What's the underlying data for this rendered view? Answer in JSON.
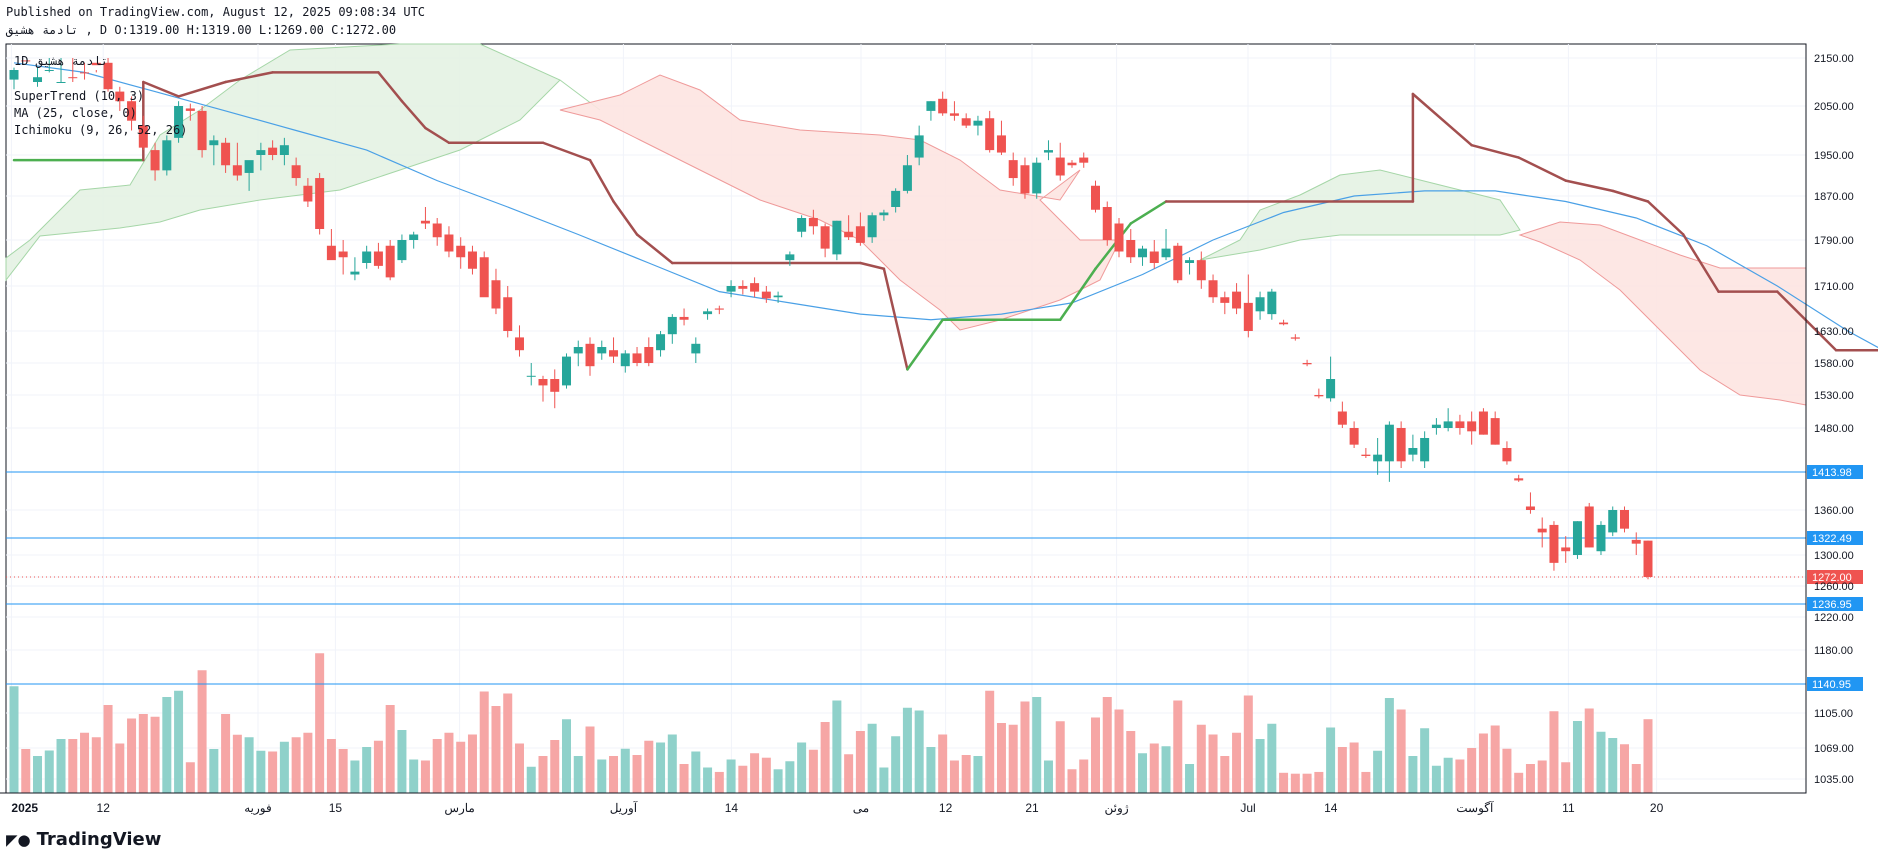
{
  "header": {
    "published": "Published on TradingView.com, August 12, 2025 09:08:34 UTC",
    "symbol_line": "تادمة هشیق , D O:1319.00 H:1319.00 L:1269.00 C:1272.00"
  },
  "legend": {
    "interval": "1D",
    "symbol": "تادمة هشیق",
    "supertrend": "SuperTrend (10, 3)",
    "ma": "MA (25, close, 0)",
    "ichimoku": "Ichimoku (9, 26, 52, 26)"
  },
  "brand": "TradingView",
  "colors": {
    "up": "#26a69a",
    "down": "#ef5350",
    "up_volume": "#8fd1ca",
    "down_volume": "#f6a6a5",
    "supertrend_up": "#4caf50",
    "supertrend_down": "#a34f4f",
    "ma": "#4aa0e6",
    "hline": "#2196f3",
    "cloud_bull": "#e4f2e3",
    "cloud_bear": "#fde4e1"
  },
  "chart_data": {
    "type": "candlestick",
    "y_axis": {
      "position": "right",
      "range": [
        1015,
        2180
      ],
      "tick_labels": [
        "2150.00",
        "2050.00",
        "1950.00",
        "1870.00",
        "1790.00",
        "1710.00",
        "1630.00",
        "1580.00",
        "1530.00",
        "1480.00",
        "1413.98",
        "1360.00",
        "1322.49",
        "1300.00",
        "1272.00",
        "1260.00",
        "1236.95",
        "1220.00",
        "1180.00",
        "1140.95",
        "1105.00",
        "1069.00",
        "1035.00"
      ],
      "tick_values": [
        2150,
        2050,
        1950,
        1870,
        1790,
        1710,
        1630,
        1580,
        1530,
        1480,
        1413.98,
        1360,
        1322.49,
        1300,
        1272,
        1260,
        1236.95,
        1220,
        1180,
        1140.95,
        1105,
        1069,
        1035
      ]
    },
    "x_axis": {
      "tick_labels": [
        "2025",
        "12",
        "فوریه",
        "15",
        "مارس",
        "آوریل",
        "14",
        "می",
        "12",
        "21",
        "ژوئن",
        "Jul",
        "14",
        "آگوست",
        "11",
        "20"
      ]
    },
    "horizontal_lines": [
      1413.98,
      1322.49,
      1236.95,
      1140.95
    ],
    "last_price": 1272.0,
    "last_bar": {
      "open": 1319.0,
      "high": 1319.0,
      "low": 1269.0,
      "close": 1272.0
    },
    "candles": [
      {
        "o": 2105,
        "h": 2170,
        "l": 2085,
        "c": 2175
      },
      {
        "o": 2155,
        "h": 2180,
        "l": 2120,
        "c": 2145
      },
      {
        "o": 2100,
        "h": 2130,
        "l": 2090,
        "c": 2110
      },
      {
        "o": 2155,
        "h": 2180,
        "l": 2150,
        "c": 2175
      },
      {
        "o": 2175,
        "h": 2200,
        "l": 2150,
        "c": 2200
      },
      {
        "o": 2190,
        "h": 2200,
        "l": 2150,
        "c": 2165
      },
      {
        "o": 2180,
        "h": 2195,
        "l": 2140,
        "c": 2150
      },
      {
        "o": 2160,
        "h": 2175,
        "l": 2120,
        "c": 2135
      },
      {
        "o": 2140,
        "h": 2150,
        "l": 2080,
        "c": 2085
      },
      {
        "o": 2080,
        "h": 2090,
        "l": 2040,
        "c": 2060
      },
      {
        "o": 2060,
        "h": 2070,
        "l": 2000,
        "c": 2020
      },
      {
        "o": 2010,
        "h": 2030,
        "l": 1960,
        "c": 1965
      },
      {
        "o": 1960,
        "h": 1975,
        "l": 1900,
        "c": 1920
      },
      {
        "o": 1920,
        "h": 1990,
        "l": 1910,
        "c": 1980
      },
      {
        "o": 1985,
        "h": 2060,
        "l": 1975,
        "c": 2050
      },
      {
        "o": 2045,
        "h": 2055,
        "l": 2020,
        "c": 2040
      },
      {
        "o": 2040,
        "h": 2050,
        "l": 1945,
        "c": 1960
      },
      {
        "o": 1970,
        "h": 1990,
        "l": 1930,
        "c": 1980
      },
      {
        "o": 1975,
        "h": 1985,
        "l": 1915,
        "c": 1930
      },
      {
        "o": 1930,
        "h": 1975,
        "l": 1900,
        "c": 1910
      },
      {
        "o": 1915,
        "h": 1935,
        "l": 1880,
        "c": 1940
      },
      {
        "o": 1950,
        "h": 1975,
        "l": 1920,
        "c": 1960
      },
      {
        "o": 1965,
        "h": 1980,
        "l": 1940,
        "c": 1950
      },
      {
        "o": 1950,
        "h": 1985,
        "l": 1930,
        "c": 1970
      },
      {
        "o": 1930,
        "h": 1945,
        "l": 1890,
        "c": 1905
      },
      {
        "o": 1890,
        "h": 1905,
        "l": 1850,
        "c": 1860
      },
      {
        "o": 1905,
        "h": 1915,
        "l": 1800,
        "c": 1810
      },
      {
        "o": 1780,
        "h": 1810,
        "l": 1760,
        "c": 1755
      },
      {
        "o": 1770,
        "h": 1790,
        "l": 1730,
        "c": 1760
      },
      {
        "o": 1730,
        "h": 1760,
        "l": 1720,
        "c": 1735
      },
      {
        "o": 1750,
        "h": 1780,
        "l": 1740,
        "c": 1770
      },
      {
        "o": 1770,
        "h": 1785,
        "l": 1740,
        "c": 1745
      },
      {
        "o": 1780,
        "h": 1790,
        "l": 1720,
        "c": 1725
      },
      {
        "o": 1755,
        "h": 1800,
        "l": 1750,
        "c": 1790
      },
      {
        "o": 1790,
        "h": 1805,
        "l": 1775,
        "c": 1800
      },
      {
        "o": 1825,
        "h": 1850,
        "l": 1810,
        "c": 1820
      },
      {
        "o": 1820,
        "h": 1830,
        "l": 1780,
        "c": 1795
      },
      {
        "o": 1800,
        "h": 1815,
        "l": 1760,
        "c": 1770
      },
      {
        "o": 1780,
        "h": 1795,
        "l": 1740,
        "c": 1760
      },
      {
        "o": 1770,
        "h": 1780,
        "l": 1730,
        "c": 1740
      },
      {
        "o": 1760,
        "h": 1770,
        "l": 1700,
        "c": 1690
      },
      {
        "o": 1720,
        "h": 1740,
        "l": 1660,
        "c": 1670
      },
      {
        "o": 1690,
        "h": 1710,
        "l": 1620,
        "c": 1630
      },
      {
        "o": 1620,
        "h": 1640,
        "l": 1590,
        "c": 1600
      },
      {
        "o": 1560,
        "h": 1580,
        "l": 1545,
        "c": 1560
      },
      {
        "o": 1555,
        "h": 1560,
        "l": 1520,
        "c": 1545
      },
      {
        "o": 1555,
        "h": 1570,
        "l": 1510,
        "c": 1535
      },
      {
        "o": 1545,
        "h": 1595,
        "l": 1540,
        "c": 1590
      },
      {
        "o": 1595,
        "h": 1615,
        "l": 1575,
        "c": 1605
      },
      {
        "o": 1610,
        "h": 1620,
        "l": 1560,
        "c": 1575
      },
      {
        "o": 1595,
        "h": 1615,
        "l": 1585,
        "c": 1605
      },
      {
        "o": 1600,
        "h": 1620,
        "l": 1580,
        "c": 1590
      },
      {
        "o": 1575,
        "h": 1600,
        "l": 1565,
        "c": 1595
      },
      {
        "o": 1595,
        "h": 1605,
        "l": 1575,
        "c": 1580
      },
      {
        "o": 1605,
        "h": 1620,
        "l": 1575,
        "c": 1580
      },
      {
        "o": 1600,
        "h": 1630,
        "l": 1590,
        "c": 1625
      },
      {
        "o": 1625,
        "h": 1660,
        "l": 1610,
        "c": 1655
      },
      {
        "o": 1655,
        "h": 1670,
        "l": 1640,
        "c": 1650
      },
      {
        "o": 1595,
        "h": 1620,
        "l": 1580,
        "c": 1610
      },
      {
        "o": 1660,
        "h": 1670,
        "l": 1650,
        "c": 1665
      },
      {
        "o": 1670,
        "h": 1675,
        "l": 1660,
        "c": 1668
      },
      {
        "o": 1700,
        "h": 1720,
        "l": 1690,
        "c": 1710
      },
      {
        "o": 1710,
        "h": 1720,
        "l": 1695,
        "c": 1705
      },
      {
        "o": 1715,
        "h": 1725,
        "l": 1690,
        "c": 1700
      },
      {
        "o": 1700,
        "h": 1710,
        "l": 1680,
        "c": 1688
      },
      {
        "o": 1690,
        "h": 1700,
        "l": 1680,
        "c": 1693
      },
      {
        "o": 1755,
        "h": 1770,
        "l": 1745,
        "c": 1765
      },
      {
        "o": 1805,
        "h": 1835,
        "l": 1795,
        "c": 1830
      },
      {
        "o": 1830,
        "h": 1845,
        "l": 1800,
        "c": 1815
      },
      {
        "o": 1815,
        "h": 1820,
        "l": 1760,
        "c": 1775
      },
      {
        "o": 1765,
        "h": 1825,
        "l": 1755,
        "c": 1825
      },
      {
        "o": 1805,
        "h": 1835,
        "l": 1790,
        "c": 1795
      },
      {
        "o": 1815,
        "h": 1840,
        "l": 1780,
        "c": 1785
      },
      {
        "o": 1795,
        "h": 1840,
        "l": 1785,
        "c": 1835
      },
      {
        "o": 1835,
        "h": 1845,
        "l": 1825,
        "c": 1840
      },
      {
        "o": 1850,
        "h": 1885,
        "l": 1840,
        "c": 1880
      },
      {
        "o": 1880,
        "h": 1950,
        "l": 1875,
        "c": 1930
      },
      {
        "o": 1945,
        "h": 2010,
        "l": 1930,
        "c": 1990
      },
      {
        "o": 2040,
        "h": 2060,
        "l": 2020,
        "c": 2060
      },
      {
        "o": 2065,
        "h": 2080,
        "l": 2030,
        "c": 2035
      },
      {
        "o": 2035,
        "h": 2060,
        "l": 2020,
        "c": 2030
      },
      {
        "o": 2025,
        "h": 2035,
        "l": 2005,
        "c": 2010
      },
      {
        "o": 2010,
        "h": 2030,
        "l": 1990,
        "c": 2020
      },
      {
        "o": 2025,
        "h": 2040,
        "l": 1955,
        "c": 1960
      },
      {
        "o": 1990,
        "h": 2020,
        "l": 1950,
        "c": 1955
      },
      {
        "o": 1940,
        "h": 1955,
        "l": 1890,
        "c": 1905
      },
      {
        "o": 1930,
        "h": 1945,
        "l": 1865,
        "c": 1875
      },
      {
        "o": 1875,
        "h": 1945,
        "l": 1865,
        "c": 1935
      },
      {
        "o": 1955,
        "h": 1980,
        "l": 1940,
        "c": 1960
      },
      {
        "o": 1945,
        "h": 1975,
        "l": 1900,
        "c": 1910
      },
      {
        "o": 1935,
        "h": 1940,
        "l": 1925,
        "c": 1930
      },
      {
        "o": 1945,
        "h": 1955,
        "l": 1925,
        "c": 1935
      },
      {
        "o": 1890,
        "h": 1900,
        "l": 1840,
        "c": 1845
      },
      {
        "o": 1850,
        "h": 1860,
        "l": 1780,
        "c": 1790
      },
      {
        "o": 1820,
        "h": 1830,
        "l": 1760,
        "c": 1770
      },
      {
        "o": 1790,
        "h": 1810,
        "l": 1750,
        "c": 1760
      },
      {
        "o": 1760,
        "h": 1780,
        "l": 1745,
        "c": 1775
      },
      {
        "o": 1770,
        "h": 1790,
        "l": 1740,
        "c": 1750
      },
      {
        "o": 1760,
        "h": 1810,
        "l": 1755,
        "c": 1775
      },
      {
        "o": 1780,
        "h": 1785,
        "l": 1715,
        "c": 1720
      },
      {
        "o": 1750,
        "h": 1760,
        "l": 1730,
        "c": 1755
      },
      {
        "o": 1755,
        "h": 1770,
        "l": 1705,
        "c": 1720
      },
      {
        "o": 1720,
        "h": 1730,
        "l": 1680,
        "c": 1690
      },
      {
        "o": 1690,
        "h": 1700,
        "l": 1660,
        "c": 1680
      },
      {
        "o": 1700,
        "h": 1715,
        "l": 1660,
        "c": 1670
      },
      {
        "o": 1680,
        "h": 1730,
        "l": 1620,
        "c": 1630
      },
      {
        "o": 1665,
        "h": 1700,
        "l": 1650,
        "c": 1690
      },
      {
        "o": 1660,
        "h": 1705,
        "l": 1650,
        "c": 1700
      },
      {
        "o": 1645,
        "h": 1650,
        "l": 1640,
        "c": 1642
      },
      {
        "o": 1620,
        "h": 1625,
        "l": 1615,
        "c": 1618
      },
      {
        "o": 1580,
        "h": 1585,
        "l": 1575,
        "c": 1578
      },
      {
        "o": 1530,
        "h": 1540,
        "l": 1525,
        "c": 1528
      },
      {
        "o": 1525,
        "h": 1590,
        "l": 1520,
        "c": 1555
      },
      {
        "o": 1505,
        "h": 1520,
        "l": 1480,
        "c": 1485
      },
      {
        "o": 1480,
        "h": 1490,
        "l": 1450,
        "c": 1455
      },
      {
        "o": 1440,
        "h": 1450,
        "l": 1435,
        "c": 1438
      },
      {
        "o": 1430,
        "h": 1465,
        "l": 1410,
        "c": 1440
      },
      {
        "o": 1430,
        "h": 1490,
        "l": 1400,
        "c": 1485
      },
      {
        "o": 1480,
        "h": 1490,
        "l": 1420,
        "c": 1430
      },
      {
        "o": 1440,
        "h": 1470,
        "l": 1430,
        "c": 1450
      },
      {
        "o": 1430,
        "h": 1475,
        "l": 1420,
        "c": 1465
      },
      {
        "o": 1480,
        "h": 1495,
        "l": 1470,
        "c": 1485
      },
      {
        "o": 1480,
        "h": 1510,
        "l": 1475,
        "c": 1490
      },
      {
        "o": 1490,
        "h": 1500,
        "l": 1470,
        "c": 1480
      },
      {
        "o": 1490,
        "h": 1505,
        "l": 1455,
        "c": 1475
      },
      {
        "o": 1505,
        "h": 1510,
        "l": 1470,
        "c": 1470
      },
      {
        "o": 1495,
        "h": 1505,
        "l": 1455,
        "c": 1455
      },
      {
        "o": 1450,
        "h": 1460,
        "l": 1425,
        "c": 1430
      },
      {
        "o": 1405,
        "h": 1410,
        "l": 1400,
        "c": 1402
      },
      {
        "o": 1365,
        "h": 1385,
        "l": 1355,
        "c": 1360
      },
      {
        "o": 1335,
        "h": 1350,
        "l": 1310,
        "c": 1330
      },
      {
        "o": 1340,
        "h": 1345,
        "l": 1280,
        "c": 1290
      },
      {
        "o": 1310,
        "h": 1325,
        "l": 1290,
        "c": 1305
      },
      {
        "o": 1300,
        "h": 1345,
        "l": 1295,
        "c": 1345
      },
      {
        "o": 1365,
        "h": 1370,
        "l": 1310,
        "c": 1310
      },
      {
        "o": 1305,
        "h": 1345,
        "l": 1300,
        "c": 1340
      },
      {
        "o": 1330,
        "h": 1365,
        "l": 1325,
        "c": 1360
      },
      {
        "o": 1360,
        "h": 1365,
        "l": 1330,
        "c": 1335
      },
      {
        "o": 1320,
        "h": 1330,
        "l": 1300,
        "c": 1315
      },
      {
        "o": 1319,
        "h": 1319,
        "l": 1269,
        "c": 1272
      }
    ],
    "volume_note": "volume histogram overlaid at chart bottom (unlabeled)",
    "indicators": {
      "supertrend": [
        {
          "x": 0,
          "y": 1940
        },
        {
          "x": 11,
          "y": 1940
        },
        {
          "x": 11,
          "y": 2100
        },
        {
          "x": 14,
          "y": 2230
        },
        {
          "x": 18,
          "y": 2200
        },
        {
          "x": 22,
          "y": 2120
        },
        {
          "x": 31,
          "y": 2120
        },
        {
          "x": 33,
          "y": 2060
        },
        {
          "x": 35,
          "y": 2005
        },
        {
          "x": 37,
          "y": 1975
        },
        {
          "x": 45,
          "y": 1975
        },
        {
          "x": 49,
          "y": 1940
        },
        {
          "x": 51,
          "y": 1860
        },
        {
          "x": 53,
          "y": 1800
        },
        {
          "x": 56,
          "y": 1750
        },
        {
          "x": 72,
          "y": 1750
        },
        {
          "x": 74,
          "y": 1740
        },
        {
          "x": 76,
          "y": 1570
        },
        {
          "x": 79,
          "y": 1650
        },
        {
          "x": 89,
          "y": 1650
        },
        {
          "x": 92,
          "y": 1740
        },
        {
          "x": 95,
          "y": 1820
        },
        {
          "x": 98,
          "y": 1860
        },
        {
          "x": 119,
          "y": 1860
        },
        {
          "x": 119,
          "y": 2075
        },
        {
          "x": 124,
          "y": 1970
        },
        {
          "x": 128,
          "y": 1945
        },
        {
          "x": 132,
          "y": 1900
        },
        {
          "x": 136,
          "y": 1880
        },
        {
          "x": 139,
          "y": 1860
        },
        {
          "x": 142,
          "y": 1800
        },
        {
          "x": 145,
          "y": 1700
        },
        {
          "x": 150,
          "y": 1700
        },
        {
          "x": 155,
          "y": 1600
        },
        {
          "x": 168,
          "y": 1600
        },
        {
          "x": 174,
          "y": 1450
        },
        {
          "x": 180,
          "y": 1430
        },
        {
          "x": 190,
          "y": 1430
        }
      ],
      "ma25": [
        {
          "x": 0,
          "y": 2140
        },
        {
          "x": 6,
          "y": 2120
        },
        {
          "x": 12,
          "y": 2080
        },
        {
          "x": 18,
          "y": 2040
        },
        {
          "x": 24,
          "y": 2000
        },
        {
          "x": 30,
          "y": 1960
        },
        {
          "x": 36,
          "y": 1900
        },
        {
          "x": 42,
          "y": 1850
        },
        {
          "x": 48,
          "y": 1800
        },
        {
          "x": 54,
          "y": 1750
        },
        {
          "x": 60,
          "y": 1700
        },
        {
          "x": 66,
          "y": 1680
        },
        {
          "x": 72,
          "y": 1660
        },
        {
          "x": 78,
          "y": 1650
        },
        {
          "x": 84,
          "y": 1660
        },
        {
          "x": 90,
          "y": 1680
        },
        {
          "x": 96,
          "y": 1730
        },
        {
          "x": 102,
          "y": 1790
        },
        {
          "x": 108,
          "y": 1840
        },
        {
          "x": 114,
          "y": 1870
        },
        {
          "x": 120,
          "y": 1880
        },
        {
          "x": 126,
          "y": 1880
        },
        {
          "x": 132,
          "y": 1860
        },
        {
          "x": 138,
          "y": 1830
        },
        {
          "x": 144,
          "y": 1780
        },
        {
          "x": 150,
          "y": 1710
        },
        {
          "x": 156,
          "y": 1630
        },
        {
          "x": 162,
          "y": 1570
        },
        {
          "x": 168,
          "y": 1530
        },
        {
          "x": 174,
          "y": 1480
        },
        {
          "x": 180,
          "y": 1430
        },
        {
          "x": 186,
          "y": 1395
        }
      ]
    }
  }
}
